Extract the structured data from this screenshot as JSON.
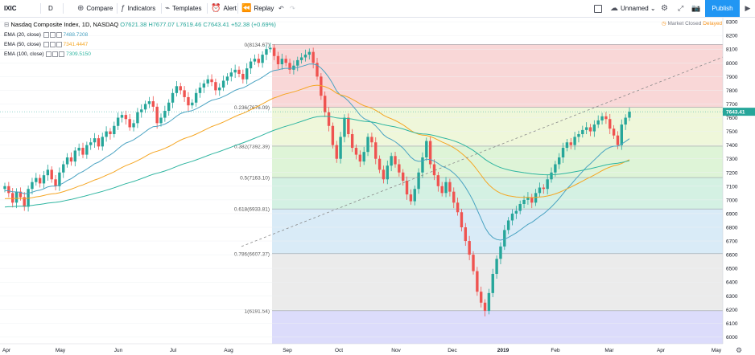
{
  "toolbar": {
    "symbol": "IXIC",
    "interval": "D",
    "compare": "Compare",
    "indicators": "Indicators",
    "templates": "Templates",
    "alert": "Alert",
    "replay": "Replay",
    "layout_name": "Unnamed",
    "publish": "Publish"
  },
  "legend": {
    "title": "Nasdaq Composite Index, 1D, NASDAQ",
    "open": "O7621.38",
    "high": "H7677.07",
    "low": "L7619.46",
    "close": "C7643.41",
    "change": "+52.38 (+0.69%)",
    "market_status": "Market Closed",
    "delayed": "Delayed"
  },
  "emas": [
    {
      "label": "EMA (20, close)",
      "value": "7488.7208",
      "color": "#4aa3c2"
    },
    {
      "label": "EMA (50, close)",
      "value": "7341.4447",
      "color": "#f5a623"
    },
    {
      "label": "EMA (100, close)",
      "value": "7309.5150",
      "color": "#2eb5a0"
    }
  ],
  "fib_levels": [
    {
      "label": "0(8134.67)",
      "price": 8134.67,
      "fill": "#f8d0d0"
    },
    {
      "label": "0.236(7676.09)",
      "price": 7676.09,
      "fill": "#ecf6d4"
    },
    {
      "label": "0.382(7392.39)",
      "price": 7392.39,
      "fill": "#d8f2d0"
    },
    {
      "label": "0.5(7163.10)",
      "price": 7163.1,
      "fill": "#cdeede"
    },
    {
      "label": "0.618(6933.81)",
      "price": 6933.81,
      "fill": "#d2e8f6"
    },
    {
      "label": "0.786(6607.37)",
      "price": 6607.37,
      "fill": "#e8e8e8"
    },
    {
      "label": "1(6191.54)",
      "price": 6191.54,
      "fill": "#d6d6fa"
    }
  ],
  "colors": {
    "up": "#26a69a",
    "down": "#ef5350",
    "accent": "#2196f3"
  },
  "current_price_label": "7643.41",
  "chart_data": {
    "type": "candlestick",
    "y_ticks": [
      6000,
      6100,
      6200,
      6300,
      6400,
      6500,
      6600,
      6700,
      6800,
      6900,
      7000,
      7100,
      7200,
      7300,
      7400,
      7500,
      7600,
      7700,
      7800,
      7900,
      8000,
      8100,
      8200,
      8300
    ],
    "x_ticks": [
      "Apr",
      "May",
      "Jun",
      "Jul",
      "Aug",
      "Sep",
      "Oct",
      "Nov",
      "Dec",
      "2019",
      "Feb",
      "Mar",
      "Apr",
      "May"
    ],
    "ylim": [
      5950,
      8330
    ],
    "close_series": [
      7100,
      7050,
      6980,
      7060,
      7020,
      6950,
      7080,
      7130,
      7160,
      7120,
      7180,
      7220,
      7150,
      7100,
      7200,
      7260,
      7310,
      7280,
      7360,
      7380,
      7330,
      7400,
      7420,
      7450,
      7390,
      7460,
      7500,
      7480,
      7540,
      7600,
      7620,
      7590,
      7530,
      7560,
      7640,
      7660,
      7700,
      7720,
      7680,
      7560,
      7600,
      7650,
      7710,
      7780,
      7830,
      7800,
      7750,
      7690,
      7710,
      7780,
      7820,
      7850,
      7880,
      7860,
      7800,
      7820,
      7870,
      7900,
      7930,
      7950,
      7920,
      7880,
      7960,
      8010,
      8030,
      8000,
      8060,
      8100,
      8110,
      8050,
      7990,
      8030,
      8000,
      7950,
      7980,
      8020,
      8040,
      8060,
      8080,
      8000,
      7900,
      7760,
      7640,
      7540,
      7400,
      7300,
      7460,
      7600,
      7480,
      7380,
      7330,
      7280,
      7350,
      7460,
      7420,
      7300,
      7220,
      7150,
      7250,
      7320,
      7260,
      7200,
      7140,
      7040,
      6990,
      7080,
      7200,
      7310,
      7430,
      7260,
      7180,
      7100,
      7050,
      7130,
      7060,
      6980,
      6910,
      6800,
      6700,
      6600,
      6480,
      6330,
      6250,
      6190,
      6320,
      6460,
      6570,
      6660,
      6780,
      6850,
      6900,
      6920,
      6970,
      7000,
      7020,
      6980,
      7050,
      7090,
      7080,
      7150,
      7200,
      7260,
      7310,
      7380,
      7420,
      7400,
      7460,
      7480,
      7510,
      7530,
      7500,
      7550,
      7580,
      7610,
      7590,
      7520,
      7470,
      7400,
      7550,
      7600,
      7643
    ]
  }
}
